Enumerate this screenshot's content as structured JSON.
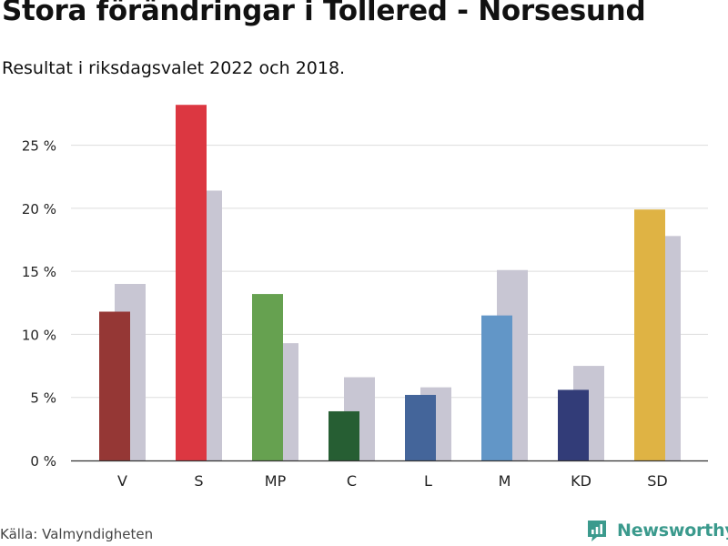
{
  "header": {
    "title": "Stora förändringar i Tollered - Norsesund",
    "subtitle": "Resultat i riksdagsvalet 2022 och 2018."
  },
  "chart_data": {
    "type": "bar",
    "title": "Stora förändringar i Tollered - Norsesund",
    "subtitle": "Resultat i riksdagsvalet 2022 och 2018.",
    "xlabel": "",
    "ylabel": "",
    "ylim": [
      0,
      28
    ],
    "yticks": [
      0,
      5,
      10,
      15,
      20,
      25
    ],
    "ytick_labels": [
      "0 %",
      "5 %",
      "10 %",
      "15 %",
      "20 %",
      "25 %"
    ],
    "grid": true,
    "categories": [
      "V",
      "S",
      "MP",
      "C",
      "L",
      "M",
      "KD",
      "SD"
    ],
    "series": [
      {
        "name": "2022",
        "values": [
          11.8,
          28.2,
          13.2,
          3.9,
          5.2,
          11.5,
          5.6,
          19.9
        ],
        "colors": [
          "#953735",
          "#dc3741",
          "#66a150",
          "#265e33",
          "#44659a",
          "#6296c7",
          "#323c78",
          "#dfb344"
        ]
      },
      {
        "name": "2018",
        "values": [
          14.0,
          21.4,
          9.3,
          6.6,
          5.8,
          15.1,
          7.5,
          17.8
        ],
        "color": "#c8c6d3"
      }
    ]
  },
  "footer": {
    "source": "Källa: Valmyndigheten",
    "brand": "Newsworthy"
  },
  "colors": {
    "brand": "#3b9a8d",
    "grid": "#dddddd",
    "axis": "#333333",
    "text": "#111111"
  }
}
